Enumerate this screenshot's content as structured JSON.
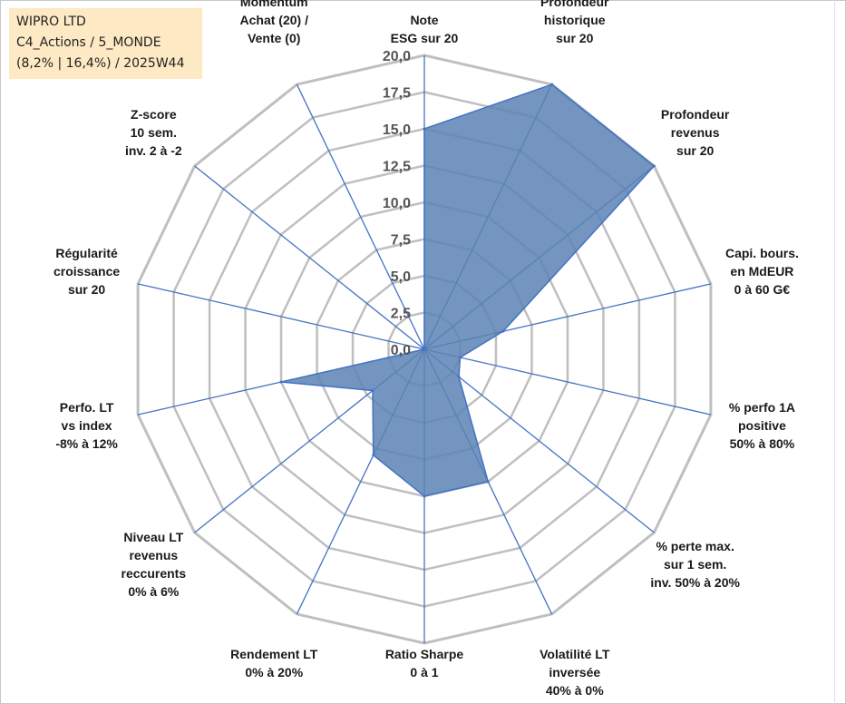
{
  "title": {
    "line1": "WIPRO LTD",
    "line2": "C4_Actions / 5_MONDE",
    "line3": "(8,2% | 16,4%) / 2025W44"
  },
  "chart_data": {
    "type": "radar",
    "rmin": 0,
    "rmax": 20,
    "ticks": [
      "0,0",
      "2,5",
      "5,0",
      "7,5",
      "10,0",
      "12,5",
      "15,0",
      "17,5",
      "20,0"
    ],
    "tick_values": [
      0,
      2.5,
      5,
      7.5,
      10,
      12.5,
      15,
      17.5,
      20
    ],
    "fill_color": "#5a82b4",
    "line_color": "#4472c4",
    "grid_color": "#bfbfbf",
    "axes": [
      {
        "label": [
          "Note",
          "ESG sur 20"
        ],
        "value": 15
      },
      {
        "label": [
          "Profondeur",
          "historique",
          "sur 20"
        ],
        "value": 20
      },
      {
        "label": [
          "Profondeur",
          "revenus",
          "sur 20"
        ],
        "value": 20
      },
      {
        "label": [
          "Capi. bours.",
          "en MdEUR",
          "0 à 60 G€"
        ],
        "value": 5.5
      },
      {
        "label": [
          "% perfo 1A",
          "positive",
          "50% à 80%"
        ],
        "value": 2.5
      },
      {
        "label": [
          "% perte max.",
          "sur 1 sem.",
          "inv. 50% à 20%"
        ],
        "value": 3
      },
      {
        "label": [
          "Volatilité LT",
          "inversée",
          "40% à 0%"
        ],
        "value": 10
      },
      {
        "label": [
          "Ratio Sharpe",
          "0 à 1"
        ],
        "value": 10
      },
      {
        "label": [
          "Rendement LT",
          "0% à 20%"
        ],
        "value": 8
      },
      {
        "label": [
          "Niveau LT",
          "revenus",
          "reccurents",
          "0% à 6%"
        ],
        "value": 4.5
      },
      {
        "label": [
          "Perfo. LT",
          "vs index",
          "-8% à 12%"
        ],
        "value": 10
      },
      {
        "label": [
          "Régularité",
          "croissance",
          "sur 20"
        ],
        "value": 0
      },
      {
        "label": [
          "Z-score",
          "10 sem.",
          "inv. 2 à -2"
        ],
        "value": 0
      },
      {
        "label": [
          "Momentum",
          "Achat (20) /",
          "Vente (0)"
        ],
        "value": 0
      }
    ]
  }
}
